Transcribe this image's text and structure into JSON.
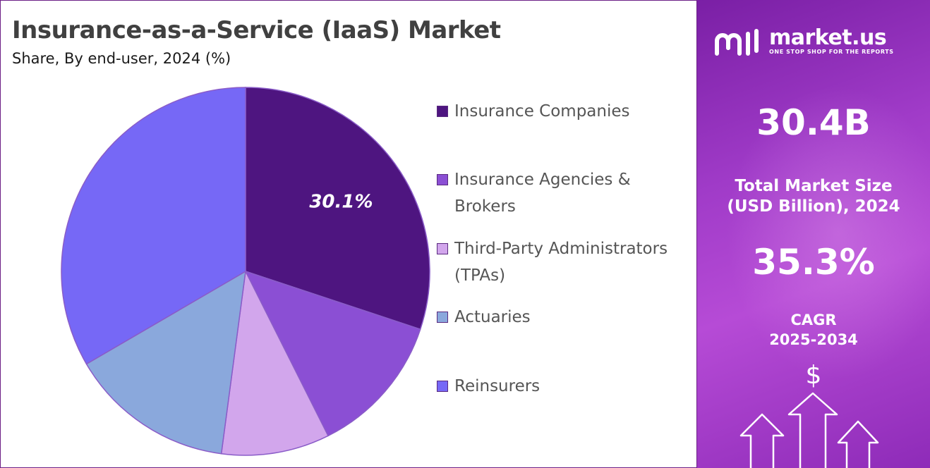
{
  "header": {
    "title": "Insurance-as-a-Service (IaaS) Market",
    "subtitle": "Share, By end-user, 2024 (%)"
  },
  "chart_data": {
    "type": "pie",
    "title": "Insurance-as-a-Service (IaaS) Market",
    "subtitle": "Share, By end-user, 2024 (%)",
    "legend_position": "right",
    "categories": [
      "Insurance Companies",
      "Insurance Agencies & Brokers",
      "Third-Party Administrators (TPAs)",
      "Actuaries",
      "Reinsurers"
    ],
    "values": [
      30.1,
      12.5,
      9.5,
      14.5,
      33.4
    ],
    "data_labels": [
      "30.1%",
      "",
      "",
      "",
      ""
    ],
    "colors": [
      "#4e1580",
      "#8b4fd4",
      "#d2a6ec",
      "#8aa8dc",
      "#7668f6"
    ]
  },
  "legend": {
    "items": [
      {
        "label_line1": "Insurance Companies",
        "label_line2": "",
        "color": "#4e1580"
      },
      {
        "label_line1": "Insurance Agencies &",
        "label_line2": "Brokers",
        "color": "#8b4fd4"
      },
      {
        "label_line1": "Third-Party Administrators",
        "label_line2": "(TPAs)",
        "color": "#d2a6ec"
      },
      {
        "label_line1": "Actuaries",
        "label_line2": "",
        "color": "#8aa8dc"
      },
      {
        "label_line1": "Reinsurers",
        "label_line2": "",
        "color": "#7668f6"
      }
    ]
  },
  "sidebar": {
    "brand": "market.us",
    "tagline": "ONE STOP SHOP FOR THE REPORTS",
    "market_size_value": "30.4B",
    "market_size_label_line1": "Total Market Size",
    "market_size_label_line2": "(USD Billion), 2024",
    "cagr_value": "35.3%",
    "cagr_label_line1": "CAGR",
    "cagr_label_line2": "2025-2034",
    "currency_symbol": "$",
    "logo_icon": "market-us-logo-icon",
    "arrow_icon": "growth-arrows-icon"
  },
  "colors": {
    "title": "#404040",
    "panel_border": "#6b1f86",
    "sidebar_gradient_start": "#7a1fa5",
    "sidebar_gradient_end": "#b64bd6"
  }
}
